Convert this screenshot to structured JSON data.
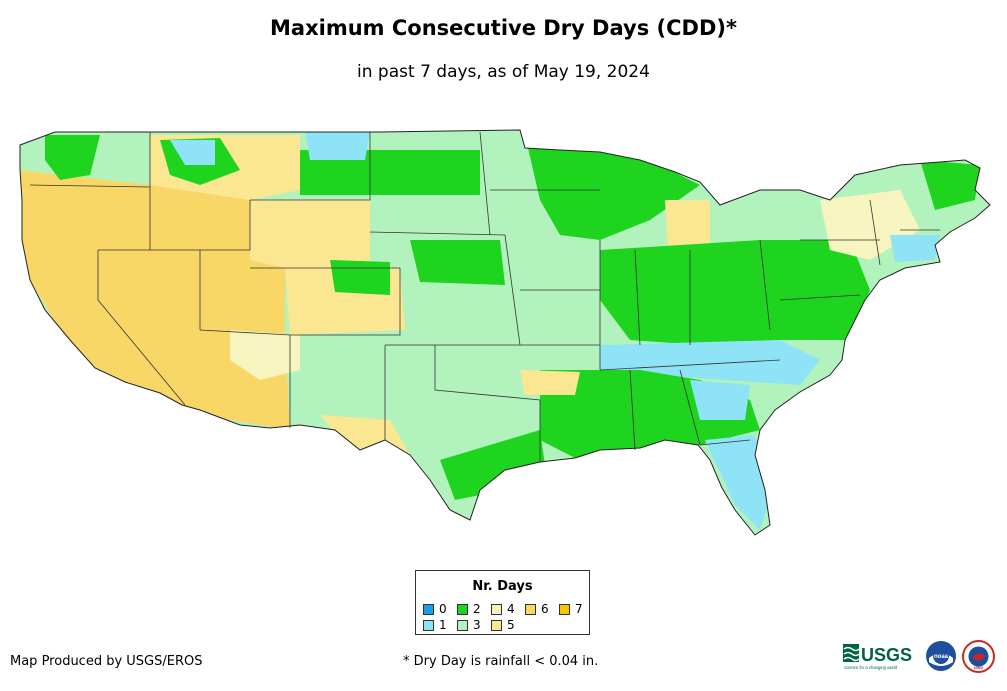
{
  "map": {
    "title": "Maximum Consecutive Dry Days (CDD)*",
    "subtitle": "in past 7 days, as of May 19, 2024",
    "region": "Contiguous United States"
  },
  "legend": {
    "title": "Nr. Days",
    "items": [
      {
        "label": "0",
        "color": "#1a9ee8"
      },
      {
        "label": "1",
        "color": "#8fe3f7"
      },
      {
        "label": "2",
        "color": "#1fd41f"
      },
      {
        "label": "3",
        "color": "#b2f2bd"
      },
      {
        "label": "4",
        "color": "#f7f5bf"
      },
      {
        "label": "5",
        "color": "#fbe792"
      },
      {
        "label": "6",
        "color": "#f9d766"
      },
      {
        "label": "7",
        "color": "#f9c400"
      }
    ]
  },
  "footer": {
    "credit": "Map Produced by USGS/EROS",
    "footnote": "* Dry Day is rainfall < 0.04 in.",
    "logo_usgs_text": "USGS",
    "logo_usgs_tagline": "science for a changing world",
    "logo_noaa_text": "noaa",
    "logo_nws_text": "NWS"
  }
}
